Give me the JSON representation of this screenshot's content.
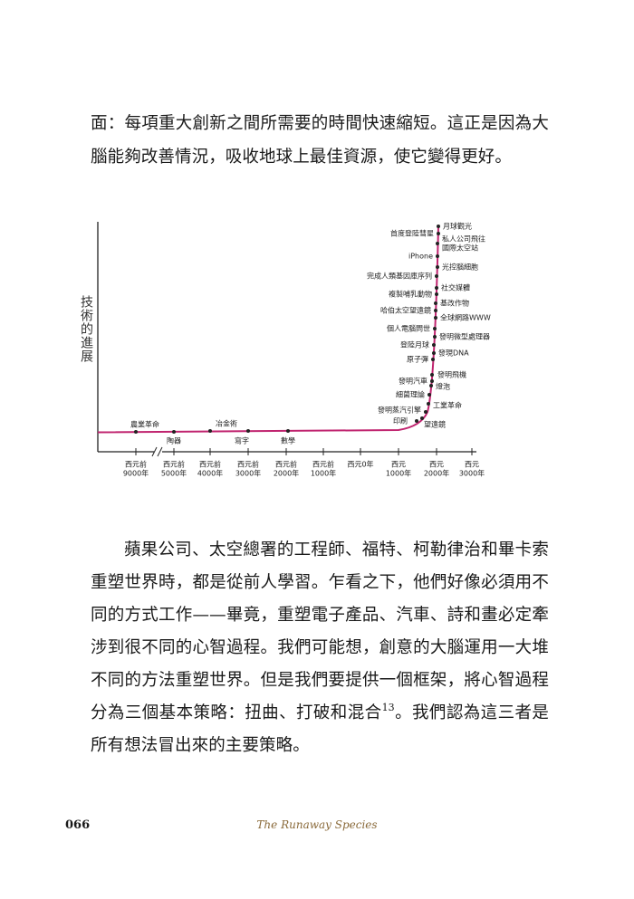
{
  "paragraphs": [
    [
      "面：每項重大創新之間所需要的時間快速縮短。這正是因為大腦能夠改善情況，吸收地球上最佳資源，使它變得更好。"
    ],
    [
      "蘋果公司、太空總署的工程師、福特、柯勒律治和畢卡索重塑世界時，都是從前人學習。乍看之下，他們好像必須用不同的方式工作——畢竟，重塑電子產品、汽車、詩和畫必定牽涉到很不同的心智過程。我們可能想，創意的大腦運用一大堆不同的方法重塑世界。但是我們要提供一個框架，將心智過程分為三個基本策略：扭曲、打破和混合",
      "13",
      "。我們認為這三者是所有想法冒出來的主要策略。"
    ]
  ],
  "figure": {
    "y_label": "技術的進展",
    "x_ticks": [
      [
        "西元前",
        "9000年"
      ],
      [
        "西元前",
        "5000年"
      ],
      [
        "西元前",
        "4000年"
      ],
      [
        "西元前",
        "3000年"
      ],
      [
        "西元前",
        "2000年"
      ],
      [
        "西元前",
        "1000年"
      ],
      [
        "西元0年"
      ],
      [
        "西元",
        "1000年"
      ],
      [
        "西元",
        "2000年"
      ],
      [
        "西元",
        "3000年"
      ]
    ],
    "events": [
      [
        "農業革命"
      ],
      [
        "陶器"
      ],
      [
        "冶金術"
      ],
      [
        "寫字"
      ],
      [
        "數學"
      ],
      [
        "印刷"
      ],
      [
        "望遠鏡"
      ],
      [
        "發明蒸汽引擎"
      ],
      [
        "工業革命"
      ],
      [
        "細菌理論"
      ],
      [
        "燈泡"
      ],
      [
        "發明汽車"
      ],
      [
        "發明飛機"
      ],
      [
        "原子彈"
      ],
      [
        "發現DNA"
      ],
      [
        "登陸月球"
      ],
      [
        "發明微型處理器"
      ],
      [
        "個人電腦問世"
      ],
      [
        "全球網路WWW"
      ],
      [
        "哈伯太空望遠鏡"
      ],
      [
        "基改作物"
      ],
      [
        "複製哺乳動物"
      ],
      [
        "社交媒體"
      ],
      [
        "完成人類基因庫序列"
      ],
      [
        "光控腦細胞"
      ],
      [
        "iPhone"
      ],
      [
        "私人公司飛往",
        "國際太空站"
      ],
      [
        "首度登陸彗星"
      ],
      [
        "月球觀光"
      ]
    ]
  },
  "footer": {
    "page_number": "066",
    "running_title": "The Runaway Species"
  }
}
